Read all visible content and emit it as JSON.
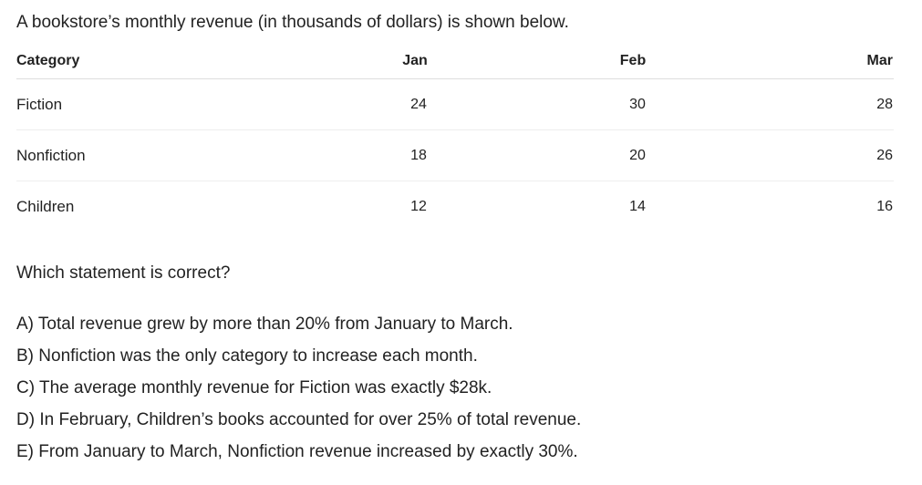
{
  "intro": "A bookstore’s monthly revenue (in thousands of dollars) is shown below.",
  "table": {
    "header": [
      "Category",
      "Jan",
      "Feb",
      "Mar"
    ],
    "rows": [
      [
        "Fiction",
        24,
        30,
        28
      ],
      [
        "Nonfiction",
        18,
        20,
        26
      ],
      [
        "Children",
        12,
        14,
        16
      ]
    ]
  },
  "question": "Which statement is correct?",
  "options": [
    "A) Total revenue grew by more than 20% from January to March.",
    "B) Nonfiction was the only category to increase each month.",
    "C) The average monthly revenue for Fiction was exactly $28k.",
    "D) In February, Children’s books accounted for over 25% of total revenue.",
    "E) From January to March, Nonfiction revenue increased by exactly 30%."
  ]
}
